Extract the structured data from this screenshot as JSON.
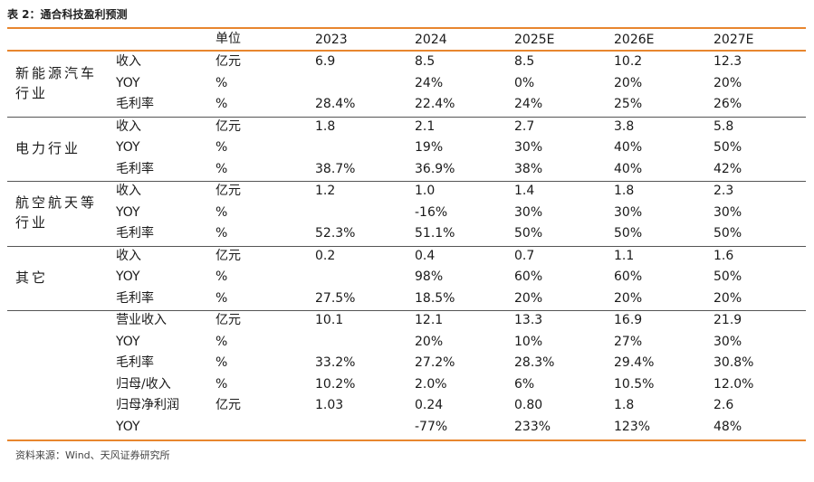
{
  "title": "表 2：通合科技盈利预测",
  "header": {
    "unit": "单位",
    "years": [
      "2023",
      "2024",
      "2025E",
      "2026E",
      "2027E"
    ]
  },
  "groups": [
    {
      "name": "新能源汽车行业",
      "rows": [
        {
          "metric": "收入",
          "unit": "亿元",
          "values": [
            "6.9",
            "8.5",
            "8.5",
            "10.2",
            "12.3"
          ]
        },
        {
          "metric": "YOY",
          "unit": "%",
          "values": [
            "",
            "24%",
            "0%",
            "20%",
            "20%"
          ]
        },
        {
          "metric": "毛利率",
          "unit": "%",
          "values": [
            "28.4%",
            "22.4%",
            "24%",
            "25%",
            "26%"
          ]
        }
      ]
    },
    {
      "name": "电力行业",
      "rows": [
        {
          "metric": "收入",
          "unit": "亿元",
          "values": [
            "1.8",
            "2.1",
            "2.7",
            "3.8",
            "5.8"
          ]
        },
        {
          "metric": "YOY",
          "unit": "%",
          "values": [
            "",
            "19%",
            "30%",
            "40%",
            "50%"
          ]
        },
        {
          "metric": "毛利率",
          "unit": "%",
          "values": [
            "38.7%",
            "36.9%",
            "38%",
            "40%",
            "42%"
          ]
        }
      ]
    },
    {
      "name": "航空航天等行业",
      "rows": [
        {
          "metric": "收入",
          "unit": "亿元",
          "values": [
            "1.2",
            "1.0",
            "1.4",
            "1.8",
            "2.3"
          ]
        },
        {
          "metric": "YOY",
          "unit": "%",
          "values": [
            "",
            "-16%",
            "30%",
            "30%",
            "30%"
          ]
        },
        {
          "metric": "毛利率",
          "unit": "%",
          "values": [
            "52.3%",
            "51.1%",
            "50%",
            "50%",
            "50%"
          ]
        }
      ]
    },
    {
      "name": "其它",
      "rows": [
        {
          "metric": "收入",
          "unit": "亿元",
          "values": [
            "0.2",
            "0.4",
            "0.7",
            "1.1",
            "1.6"
          ]
        },
        {
          "metric": "YOY",
          "unit": "%",
          "values": [
            "",
            "98%",
            "60%",
            "60%",
            "50%"
          ]
        },
        {
          "metric": "毛利率",
          "unit": "%",
          "values": [
            "27.5%",
            "18.5%",
            "20%",
            "20%",
            "20%"
          ]
        }
      ]
    },
    {
      "name": "",
      "rows": [
        {
          "metric": "营业收入",
          "unit": "亿元",
          "values": [
            "10.1",
            "12.1",
            "13.3",
            "16.9",
            "21.9"
          ]
        },
        {
          "metric": "YOY",
          "unit": "%",
          "values": [
            "",
            "20%",
            "10%",
            "27%",
            "30%"
          ]
        },
        {
          "metric": "毛利率",
          "unit": "%",
          "values": [
            "33.2%",
            "27.2%",
            "28.3%",
            "29.4%",
            "30.8%"
          ]
        },
        {
          "metric": "归母/收入",
          "unit": "%",
          "values": [
            "10.2%",
            "2.0%",
            "6%",
            "10.5%",
            "12.0%"
          ]
        },
        {
          "metric": "归母净利润",
          "unit": "亿元",
          "values": [
            "1.03",
            "0.24",
            "0.80",
            "1.8",
            "2.6"
          ]
        },
        {
          "metric": "YOY",
          "unit": "",
          "values": [
            "",
            "-77%",
            "233%",
            "123%",
            "48%"
          ]
        }
      ]
    }
  ],
  "source": "资料来源：Wind、天风证券研究所"
}
